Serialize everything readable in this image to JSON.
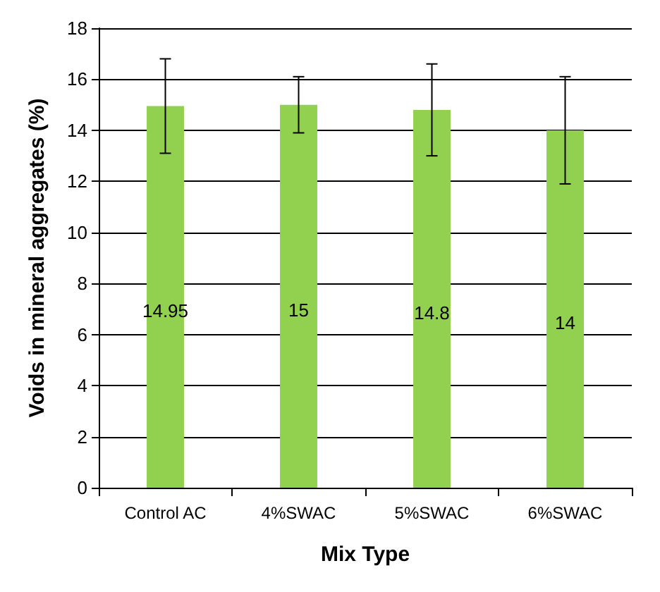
{
  "chart_data": {
    "type": "bar",
    "xlabel": "Mix Type",
    "ylabel": "Voids in mineral aggregates (%)",
    "categories": [
      "Control AC",
      "4%SWAC",
      "5%SWAC",
      "6%SWAC"
    ],
    "values": [
      14.95,
      15,
      14.8,
      14
    ],
    "color": "#92d050",
    "errors": [
      [
        13.1,
        16.8
      ],
      [
        13.9,
        16.1
      ],
      [
        13.0,
        16.6
      ],
      [
        11.9,
        16.1
      ]
    ],
    "data_labels": true,
    "ylim": [
      0,
      18
    ],
    "yticks": [
      0,
      2,
      4,
      6,
      8,
      10,
      12,
      14,
      16,
      18
    ],
    "grid": "y"
  }
}
